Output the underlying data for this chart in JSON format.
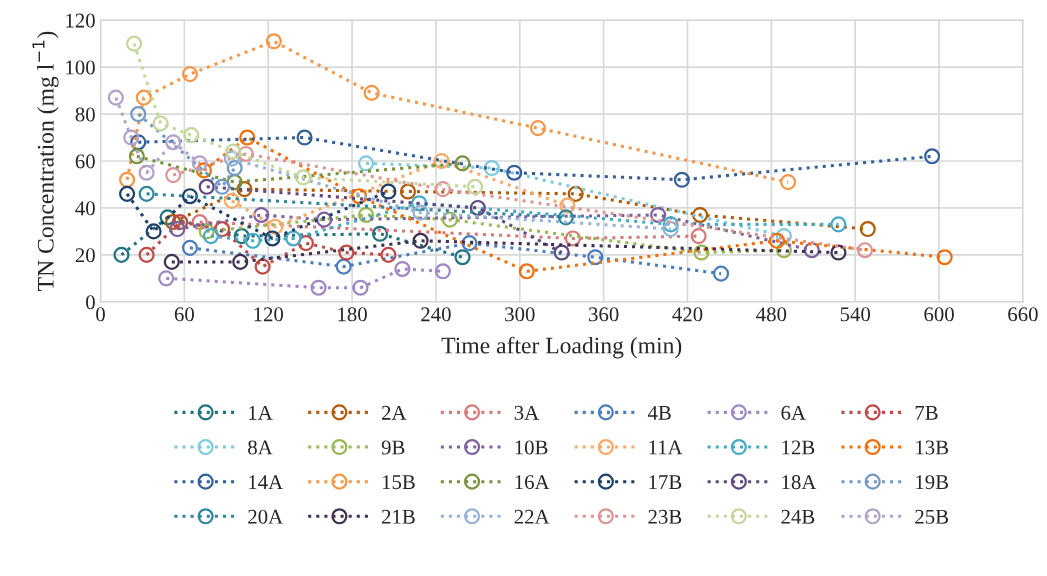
{
  "chart_data": {
    "type": "line",
    "xlabel": "Time after Loading (min)",
    "ylabel": "TN Concentration (mg l$^{−1}$)",
    "xlim": [
      0,
      660
    ],
    "xticks": [
      0,
      60,
      120,
      180,
      240,
      300,
      360,
      420,
      480,
      540,
      600,
      660
    ],
    "ylim": [
      0,
      120
    ],
    "yticks": [
      0,
      20,
      40,
      60,
      80,
      100,
      120
    ],
    "grid": true,
    "legend": "bottom",
    "marker": "circle",
    "line_style": "dotted",
    "series": [
      {
        "name": "1A",
        "color": "#23727f",
        "x": [
          15,
          48,
          101,
          200,
          259
        ],
        "values": [
          20,
          36,
          28,
          29,
          19
        ]
      },
      {
        "name": "2A",
        "color": "#b35a09",
        "x": [
          52,
          103,
          220,
          340,
          429,
          549
        ],
        "values": [
          34,
          48,
          47,
          46,
          37,
          31
        ]
      },
      {
        "name": "3A",
        "color": "#d6797a",
        "x": [
          71,
          338,
          428
        ],
        "values": [
          34,
          27,
          28
        ]
      },
      {
        "name": "4B",
        "color": "#4a7ebb",
        "x": [
          64,
          174,
          264,
          354,
          444
        ],
        "values": [
          23,
          15,
          25,
          19,
          12
        ]
      },
      {
        "name": "6A",
        "color": "#9f88c3",
        "x": [
          47,
          156,
          186,
          216,
          245
        ],
        "values": [
          10,
          6,
          6,
          14,
          13
        ]
      },
      {
        "name": "7B",
        "color": "#be4b48",
        "x": [
          33,
          57,
          87,
          116,
          147,
          176,
          206
        ],
        "values": [
          20,
          34,
          31,
          15,
          25,
          21,
          20
        ]
      },
      {
        "name": "8A",
        "color": "#7fcadd",
        "x": [
          190,
          280,
          489
        ],
        "values": [
          59,
          57,
          28
        ]
      },
      {
        "name": "9B",
        "color": "#98b954",
        "x": [
          76,
          190,
          250,
          430,
          489
        ],
        "values": [
          30,
          37,
          35,
          21,
          22
        ]
      },
      {
        "name": "10B",
        "color": "#7d60a0",
        "x": [
          55,
          115,
          160,
          399,
          509
        ],
        "values": [
          31,
          37,
          35,
          37,
          22
        ]
      },
      {
        "name": "11A",
        "color": "#f9a96a",
        "x": [
          94,
          125,
          244,
          334
        ],
        "values": [
          43,
          32,
          60,
          41
        ]
      },
      {
        "name": "12B",
        "color": "#46aac5",
        "x": [
          79,
          109,
          138,
          228,
          408,
          528
        ],
        "values": [
          28,
          26,
          27,
          42,
          33,
          33
        ]
      },
      {
        "name": "13B",
        "color": "#f06f0c",
        "x": [
          74,
          105,
          185,
          305,
          484,
          604
        ],
        "values": [
          56,
          70,
          45,
          13,
          26,
          19
        ]
      },
      {
        "name": "14A",
        "color": "#35609a",
        "x": [
          27,
          146,
          296,
          416,
          595
        ],
        "values": [
          68,
          70,
          55,
          52,
          62
        ]
      },
      {
        "name": "15B",
        "color": "#f79646",
        "x": [
          19,
          31,
          64,
          124,
          194,
          313,
          492
        ],
        "values": [
          52,
          87,
          97,
          111,
          89,
          74,
          51
        ]
      },
      {
        "name": "16A",
        "color": "#76933c",
        "x": [
          26,
          96,
          259
        ],
        "values": [
          62,
          51,
          59
        ]
      },
      {
        "name": "17B",
        "color": "#1f3f6a",
        "x": [
          19,
          38,
          64,
          123,
          206
        ],
        "values": [
          46,
          30,
          45,
          27,
          47
        ]
      },
      {
        "name": "18A",
        "color": "#5e4a7e",
        "x": [
          76,
          270,
          330
        ],
        "values": [
          49,
          40,
          21
        ]
      },
      {
        "name": "19B",
        "color": "#7399c6",
        "x": [
          27,
          87,
          96
        ],
        "values": [
          80,
          49,
          57
        ]
      },
      {
        "name": "20A",
        "color": "#31859c",
        "x": [
          33,
          333
        ],
        "values": [
          46,
          36
        ]
      },
      {
        "name": "21B",
        "color": "#3f3151",
        "x": [
          51,
          100,
          229,
          528
        ],
        "values": [
          17,
          17,
          26,
          21
        ]
      },
      {
        "name": "22A",
        "color": "#95b3d7",
        "x": [
          94,
          229,
          408
        ],
        "values": [
          61,
          38,
          31
        ]
      },
      {
        "name": "23B",
        "color": "#da9694",
        "x": [
          52,
          104,
          245,
          547
        ],
        "values": [
          54,
          63,
          48,
          22
        ]
      },
      {
        "name": "24B",
        "color": "#c3d69b",
        "x": [
          24,
          43,
          65,
          95,
          145,
          268
        ],
        "values": [
          110,
          76,
          71,
          64,
          53,
          49
        ]
      },
      {
        "name": "25B",
        "color": "#b3a2c7",
        "x": [
          11,
          22,
          33,
          52,
          71
        ],
        "values": [
          87,
          70,
          55,
          68,
          59
        ]
      }
    ]
  }
}
